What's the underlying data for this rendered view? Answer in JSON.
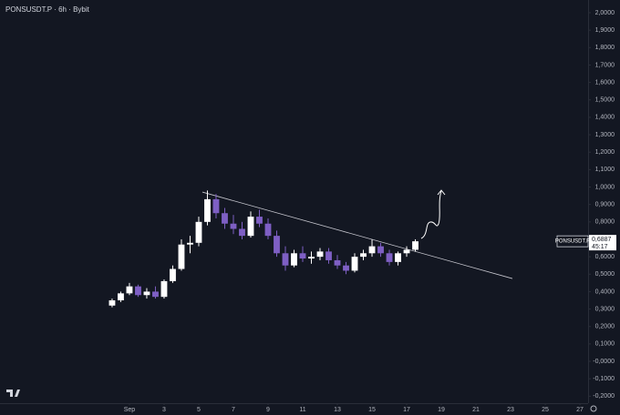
{
  "chart_data": {
    "type": "candlestick",
    "title": "PONSUSDT.P · 6h · Bybit",
    "symbol_label": "PONSUSDT.P",
    "last_price": {
      "value": 0.6887,
      "label": "0,6887"
    },
    "countdown": "45:17",
    "up_color": "#ffffff",
    "down_color": "#7e5fc4",
    "x": [
      0,
      0.5,
      1,
      1.5,
      2,
      2.5,
      3,
      3.5,
      4,
      4.5,
      5,
      5.5,
      6,
      6.5,
      7,
      7.5,
      8,
      8.5,
      9,
      9.5,
      10,
      10.5,
      11,
      11.5,
      12,
      12.5,
      13,
      13.5,
      14,
      14.5,
      15,
      15.5,
      16,
      16.5,
      17,
      17.5
    ],
    "open": [
      0.32,
      0.35,
      0.39,
      0.43,
      0.38,
      0.4,
      0.37,
      0.46,
      0.53,
      0.67,
      0.68,
      0.8,
      0.93,
      0.85,
      0.79,
      0.76,
      0.72,
      0.83,
      0.79,
      0.72,
      0.62,
      0.55,
      0.62,
      0.59,
      0.6,
      0.63,
      0.58,
      0.55,
      0.52,
      0.6,
      0.62,
      0.66,
      0.62,
      0.57,
      0.62,
      0.64
    ],
    "high": [
      0.36,
      0.4,
      0.45,
      0.44,
      0.42,
      0.43,
      0.47,
      0.55,
      0.7,
      0.72,
      0.83,
      0.98,
      0.96,
      0.88,
      0.84,
      0.8,
      0.86,
      0.87,
      0.82,
      0.75,
      0.66,
      0.64,
      0.66,
      0.63,
      0.65,
      0.65,
      0.61,
      0.57,
      0.62,
      0.64,
      0.7,
      0.68,
      0.64,
      0.63,
      0.66,
      0.7
    ],
    "low": [
      0.31,
      0.34,
      0.38,
      0.37,
      0.36,
      0.36,
      0.36,
      0.45,
      0.52,
      0.62,
      0.66,
      0.78,
      0.82,
      0.76,
      0.73,
      0.7,
      0.71,
      0.77,
      0.7,
      0.6,
      0.52,
      0.54,
      0.57,
      0.56,
      0.58,
      0.56,
      0.53,
      0.5,
      0.51,
      0.58,
      0.6,
      0.6,
      0.55,
      0.55,
      0.6,
      0.63
    ],
    "close": [
      0.35,
      0.39,
      0.43,
      0.38,
      0.4,
      0.37,
      0.46,
      0.53,
      0.67,
      0.68,
      0.8,
      0.93,
      0.85,
      0.79,
      0.76,
      0.72,
      0.83,
      0.79,
      0.72,
      0.62,
      0.55,
      0.62,
      0.59,
      0.6,
      0.63,
      0.58,
      0.55,
      0.52,
      0.6,
      0.62,
      0.66,
      0.62,
      0.57,
      0.62,
      0.64,
      0.6887
    ],
    "trendline": {
      "x": [
        5.21,
        23.1
      ],
      "values": [
        0.971,
        0.475
      ]
    },
    "xlim": [
      -6.47,
      27.47
    ],
    "xticks": [
      {
        "value": 1,
        "label": "Sep"
      },
      3,
      5,
      7,
      9,
      11,
      13,
      15,
      17,
      19,
      21,
      23,
      25,
      27
    ],
    "ylim": [
      -0.24,
      2.073
    ],
    "yticks": [
      {
        "value": 2.0,
        "label": "2,0000"
      },
      {
        "value": 1.9,
        "label": "1,9000"
      },
      {
        "value": 1.8,
        "label": "1,8000"
      },
      {
        "value": 1.7,
        "label": "1,7000"
      },
      {
        "value": 1.6,
        "label": "1,6000"
      },
      {
        "value": 1.5,
        "label": "1,5000"
      },
      {
        "value": 1.4,
        "label": "1,4000"
      },
      {
        "value": 1.3,
        "label": "1,3000"
      },
      {
        "value": 1.2,
        "label": "1,2000"
      },
      {
        "value": 1.1,
        "label": "1,1000"
      },
      {
        "value": 1.0,
        "label": "1,0000"
      },
      {
        "value": 0.9,
        "label": "0,9000"
      },
      {
        "value": 0.8,
        "label": "0,8000"
      },
      {
        "value": 0.7,
        "label": "0,7000"
      },
      {
        "value": 0.6,
        "label": "0,6000"
      },
      {
        "value": 0.5,
        "label": "0,5000"
      },
      {
        "value": 0.4,
        "label": "0,4000"
      },
      {
        "value": 0.3,
        "label": "0,3000"
      },
      {
        "value": 0.2,
        "label": "0,2000"
      },
      {
        "value": 0.1,
        "label": "0,1000"
      },
      {
        "value": 0,
        "label": "-0,0000"
      },
      {
        "value": -0.1,
        "label": "-0,1000"
      },
      {
        "value": -0.2,
        "label": "-0,2000"
      }
    ]
  }
}
